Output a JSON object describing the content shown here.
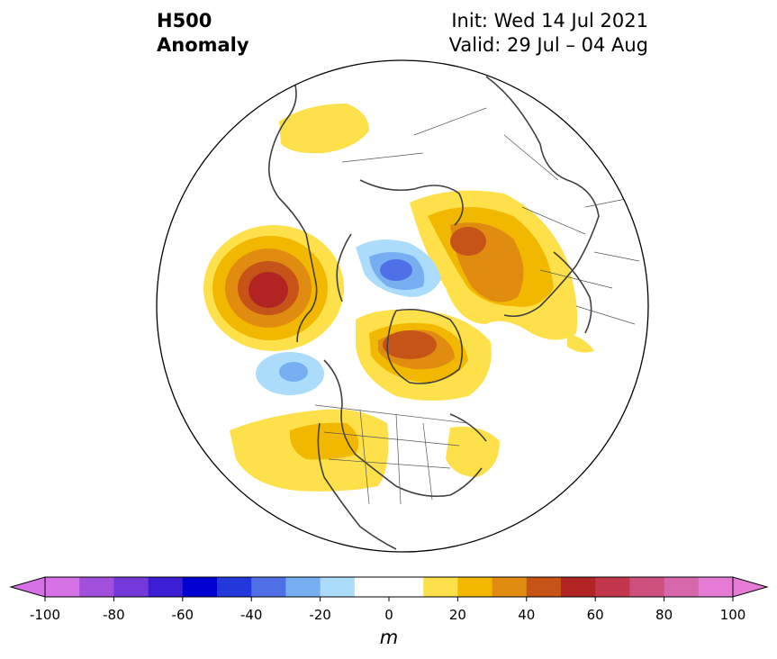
{
  "title": {
    "left_line1": "H500",
    "left_line2": "Anomaly",
    "right_line1": "Init: Wed 14 Jul 2021",
    "right_line2": "Valid: 29 Jul – 04 Aug"
  },
  "colorbar": {
    "unit": "m",
    "ticks": [
      "-100",
      "-80",
      "-60",
      "-40",
      "-20",
      "0",
      "20",
      "40",
      "60",
      "80",
      "100"
    ],
    "bounds": [
      -100,
      100
    ],
    "extend": "both",
    "colors": [
      "#d672e6",
      "#a24fdc",
      "#7439d8",
      "#3c1fd4",
      "#0000d0",
      "#2338da",
      "#4e6fe6",
      "#77aef2",
      "#acdcfb",
      "#ffffff",
      "#ffffff",
      "#fde04a",
      "#f2b800",
      "#e08c10",
      "#c65418",
      "#b22424",
      "#c2354a",
      "#cc4f7c",
      "#d767ab",
      "#e67bd6"
    ],
    "low_extend_color": "#d672e6",
    "high_extend_color": "#e67bd6"
  },
  "map": {
    "projection": "north polar stereographic",
    "field": "500 hPa geopotential height anomaly"
  }
}
